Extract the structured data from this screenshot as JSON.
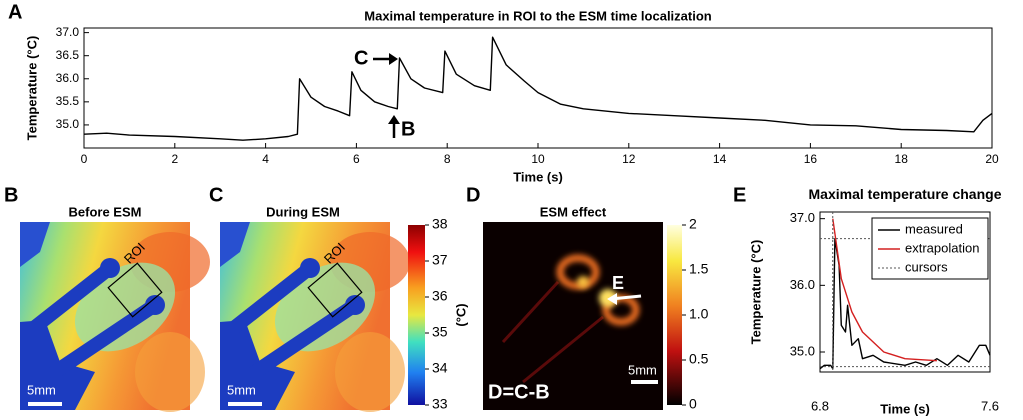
{
  "chart_data": [
    {
      "type": "line",
      "title": "Maximal temperature in ROI to the ESM time localization",
      "xlabel": "Time (s)",
      "ylabel": "Temperature (°C)",
      "annotations": [
        "C",
        "B"
      ],
      "xlim": [
        0,
        20
      ],
      "ylim": [
        34.5,
        37.1
      ],
      "xticks": [
        0,
        2,
        4,
        6,
        8,
        10,
        12,
        14,
        16,
        18,
        20
      ],
      "yticks": [
        {
          "value": 35,
          "label": "35.0"
        },
        {
          "value": 35.5,
          "label": "35.5"
        },
        {
          "value": 36,
          "label": "36.0"
        },
        {
          "value": 36.5,
          "label": "36.5"
        },
        {
          "value": 37,
          "label": "37.0"
        }
      ],
      "grid": false,
      "x": [
        0,
        0.5,
        1,
        2,
        3,
        3.5,
        4,
        4.5,
        4.7,
        4.75,
        5.0,
        5.3,
        5.6,
        5.85,
        5.9,
        6.1,
        6.4,
        6.7,
        6.9,
        6.95,
        7.2,
        7.5,
        7.9,
        7.95,
        8.2,
        8.6,
        8.95,
        9.0,
        9.3,
        9.7,
        10,
        10.5,
        11,
        12,
        13,
        14,
        15,
        16,
        17,
        18,
        19,
        19.6,
        19.8,
        20
      ],
      "series": [
        {
          "name": "measured",
          "color": "#000000",
          "values": [
            34.8,
            34.82,
            34.78,
            34.75,
            34.7,
            34.67,
            34.7,
            34.75,
            34.8,
            36.0,
            35.6,
            35.4,
            35.3,
            35.2,
            36.15,
            35.75,
            35.5,
            35.4,
            35.35,
            36.45,
            36.0,
            35.8,
            35.7,
            36.6,
            36.1,
            35.85,
            35.75,
            36.9,
            36.3,
            35.95,
            35.7,
            35.45,
            35.35,
            35.25,
            35.2,
            35.15,
            35.1,
            35.0,
            34.98,
            34.9,
            34.88,
            34.85,
            35.1,
            35.25
          ]
        }
      ]
    },
    {
      "type": "line",
      "title": "Maximal temperature change",
      "xlabel": "Time (s)",
      "ylabel": "Temperature (°C)",
      "xlim": [
        6.8,
        7.6
      ],
      "ylim": [
        34.7,
        37.1
      ],
      "xticks": [
        6.8,
        7.6
      ],
      "yticks": [
        {
          "value": 35,
          "label": "35.0"
        },
        {
          "value": 36,
          "label": "36.0"
        },
        {
          "value": 37,
          "label": "37.0"
        }
      ],
      "grid": false,
      "legend": "upper right",
      "series": [
        {
          "name": "measured",
          "color": "#000000",
          "x": [
            6.8,
            6.82,
            6.85,
            6.86,
            6.87,
            6.89,
            6.9,
            6.92,
            6.93,
            6.95,
            6.98,
            7.0,
            7.05,
            7.1,
            7.2,
            7.25,
            7.3,
            7.35,
            7.4,
            7.45,
            7.5,
            7.55,
            7.58,
            7.6
          ],
          "values": [
            34.75,
            34.8,
            34.8,
            34.75,
            36.7,
            36.3,
            35.4,
            35.3,
            35.7,
            35.1,
            35.2,
            34.9,
            34.95,
            34.85,
            34.8,
            34.85,
            34.8,
            34.9,
            34.8,
            34.95,
            34.85,
            35.1,
            35.1,
            34.95
          ]
        },
        {
          "name": "extrapolation",
          "color": "#d42020",
          "x": [
            6.86,
            6.9,
            6.95,
            7.0,
            7.1,
            7.2,
            7.35
          ],
          "values": [
            37.0,
            36.1,
            35.6,
            35.3,
            35.0,
            34.9,
            34.87
          ]
        },
        {
          "name": "cursors",
          "color": "#555555",
          "hlines": [
            36.7,
            34.78
          ],
          "vline": 6.86
        }
      ]
    }
  ],
  "panels": {
    "letters": [
      "A",
      "B",
      "C",
      "D",
      "E"
    ],
    "images": [
      {
        "title": "Before ESM",
        "roi": "ROI",
        "scale": "5mm"
      },
      {
        "title": "During ESM",
        "roi": "ROI",
        "scale": "5mm"
      },
      {
        "title": "ESM effect",
        "scale": "5mm",
        "formula": "D=C-B",
        "marker": "E"
      }
    ],
    "colorbars": [
      {
        "label": "(°C)",
        "lim": [
          33,
          38
        ],
        "ticks": [
          33,
          34,
          35,
          36,
          37,
          38
        ]
      },
      {
        "lim": [
          0,
          2
        ],
        "ticks": [
          0,
          0.5,
          {
            "value": 1,
            "label": "1.0"
          },
          1.5,
          2
        ]
      }
    ]
  }
}
